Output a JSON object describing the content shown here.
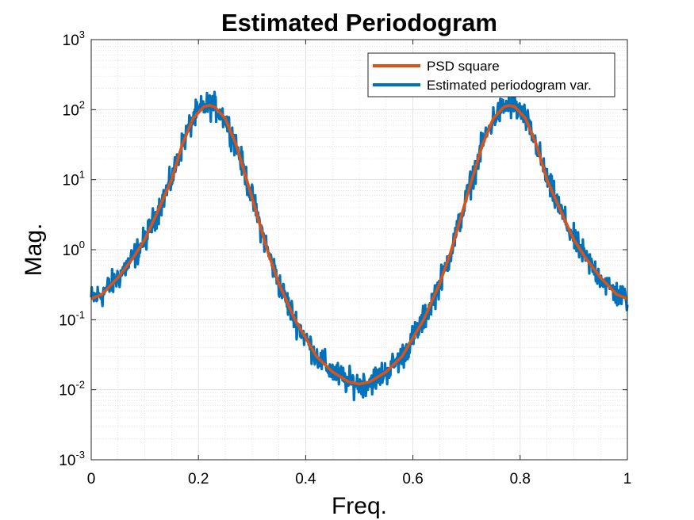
{
  "chart_data": {
    "type": "line",
    "title": "Estimated Periodogram",
    "xlabel": "Freq.",
    "ylabel": "Mag.",
    "xlim": [
      0,
      1
    ],
    "ylim": [
      0.001,
      1000
    ],
    "y_scale": "log",
    "grid": true,
    "minor_grid": true,
    "legend_position": "top-right",
    "x_ticks": [
      "0",
      "0.2",
      "0.4",
      "0.6",
      "0.8",
      "1"
    ],
    "y_ticks": [
      {
        "base": "10",
        "exp": "-3"
      },
      {
        "base": "10",
        "exp": "-2"
      },
      {
        "base": "10",
        "exp": "-1"
      },
      {
        "base": "10",
        "exp": "0"
      },
      {
        "base": "10",
        "exp": "1"
      },
      {
        "base": "10",
        "exp": "2"
      },
      {
        "base": "10",
        "exp": "3"
      }
    ],
    "series": [
      {
        "name": "PSD square",
        "color": "#D95319",
        "x": [
          0,
          0.02,
          0.05,
          0.08,
          0.1,
          0.12,
          0.15,
          0.17,
          0.19,
          0.21,
          0.22,
          0.23,
          0.25,
          0.27,
          0.29,
          0.31,
          0.33,
          0.35,
          0.38,
          0.4,
          0.42,
          0.45,
          0.48,
          0.5,
          0.52,
          0.55,
          0.58,
          0.6,
          0.62,
          0.65,
          0.67,
          0.69,
          0.71,
          0.73,
          0.75,
          0.77,
          0.78,
          0.79,
          0.81,
          0.83,
          0.85,
          0.88,
          0.9,
          0.92,
          0.95,
          0.98,
          1
        ],
        "values": [
          0.2,
          0.23,
          0.4,
          0.8,
          1.4,
          3.0,
          10,
          32,
          75,
          110,
          115,
          110,
          75,
          32,
          10,
          3.0,
          0.9,
          0.33,
          0.1,
          0.055,
          0.03,
          0.018,
          0.013,
          0.012,
          0.013,
          0.018,
          0.03,
          0.055,
          0.1,
          0.33,
          0.9,
          3.0,
          10,
          32,
          75,
          110,
          115,
          110,
          75,
          32,
          10,
          3.0,
          1.4,
          0.8,
          0.4,
          0.23,
          0.2
        ]
      },
      {
        "name": "Estimated periodogram var.",
        "color": "#0072BD",
        "x": [
          0,
          0.02,
          0.05,
          0.08,
          0.1,
          0.12,
          0.15,
          0.17,
          0.19,
          0.21,
          0.22,
          0.23,
          0.25,
          0.27,
          0.29,
          0.31,
          0.33,
          0.35,
          0.38,
          0.4,
          0.42,
          0.45,
          0.48,
          0.5,
          0.52,
          0.55,
          0.58,
          0.6,
          0.62,
          0.65,
          0.67,
          0.69,
          0.71,
          0.73,
          0.75,
          0.77,
          0.78,
          0.79,
          0.81,
          0.83,
          0.85,
          0.88,
          0.9,
          0.92,
          0.95,
          0.98,
          1
        ],
        "values": [
          0.2,
          0.23,
          0.4,
          0.8,
          1.4,
          3.0,
          10,
          32,
          75,
          110,
          115,
          110,
          75,
          32,
          10,
          3.0,
          0.9,
          0.33,
          0.1,
          0.055,
          0.03,
          0.018,
          0.013,
          0.012,
          0.013,
          0.018,
          0.03,
          0.055,
          0.1,
          0.33,
          0.9,
          3.0,
          10,
          32,
          75,
          110,
          115,
          110,
          75,
          32,
          10,
          3.0,
          1.4,
          0.8,
          0.4,
          0.23,
          0.2
        ],
        "noise_spread_factor": 1.8
      }
    ]
  }
}
